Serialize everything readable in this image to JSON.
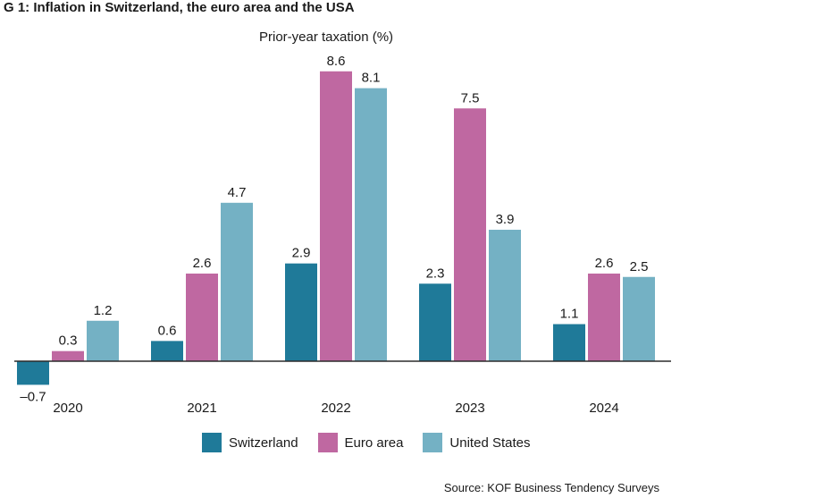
{
  "title": "G 1: Inflation in Switzerland, the euro area and the USA",
  "source": "Source: KOF Business Tendency Surveys",
  "chart_data": {
    "type": "bar",
    "title": "G 1: Inflation in Switzerland, the euro area and the USA",
    "ylabel": "Prior-year taxation (%)",
    "xlabel": "",
    "categories": [
      "2020",
      "2021",
      "2022",
      "2023",
      "2024"
    ],
    "series": [
      {
        "name": "Switzerland",
        "color": "#1f7a99",
        "values": [
          -0.7,
          0.6,
          2.9,
          2.3,
          1.1
        ]
      },
      {
        "name": "Euro area",
        "color": "#bf68a1",
        "values": [
          0.3,
          2.6,
          8.6,
          7.5,
          2.6
        ]
      },
      {
        "name": "United States",
        "color": "#74b1c4",
        "values": [
          1.2,
          4.7,
          8.1,
          3.9,
          2.5
        ]
      }
    ],
    "value_labels": [
      [
        "–0.7",
        "0.6",
        "2.9",
        "2.3",
        "1.1"
      ],
      [
        "0.3",
        "2.6",
        "8.6",
        "7.5",
        "2.6"
      ],
      [
        "1.2",
        "4.7",
        "8.1",
        "3.9",
        "2.5"
      ]
    ],
    "ylim": [
      -0.7,
      8.6
    ],
    "grid": false,
    "legend": "bottom"
  }
}
